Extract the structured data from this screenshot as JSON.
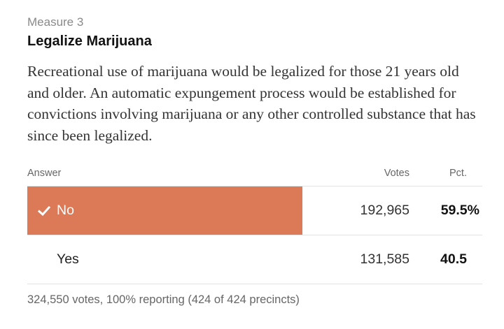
{
  "measure": {
    "eyebrow": "Measure 3",
    "title": "Legalize Marijuana",
    "description": "Recreational use of marijuana would be legalized for those 21 years old and older. An automatic expungement process would be established for convictions involving marijuana or any other controlled substance that has since been legalized."
  },
  "table": {
    "headers": {
      "answer": "Answer",
      "votes": "Votes",
      "pct": "Pct."
    },
    "rows": [
      {
        "answer": "No",
        "votes": "192,965",
        "pct": "59.5%",
        "winner": true,
        "share": 0.595,
        "bar_color": "#dc7957",
        "icon": "checkmark-icon"
      },
      {
        "answer": "Yes",
        "votes": "131,585",
        "pct": "40.5",
        "winner": false,
        "share": 0.405
      }
    ]
  },
  "footer": {
    "summary": "324,550 votes, 100% reporting (424 of 424 precincts)"
  }
}
